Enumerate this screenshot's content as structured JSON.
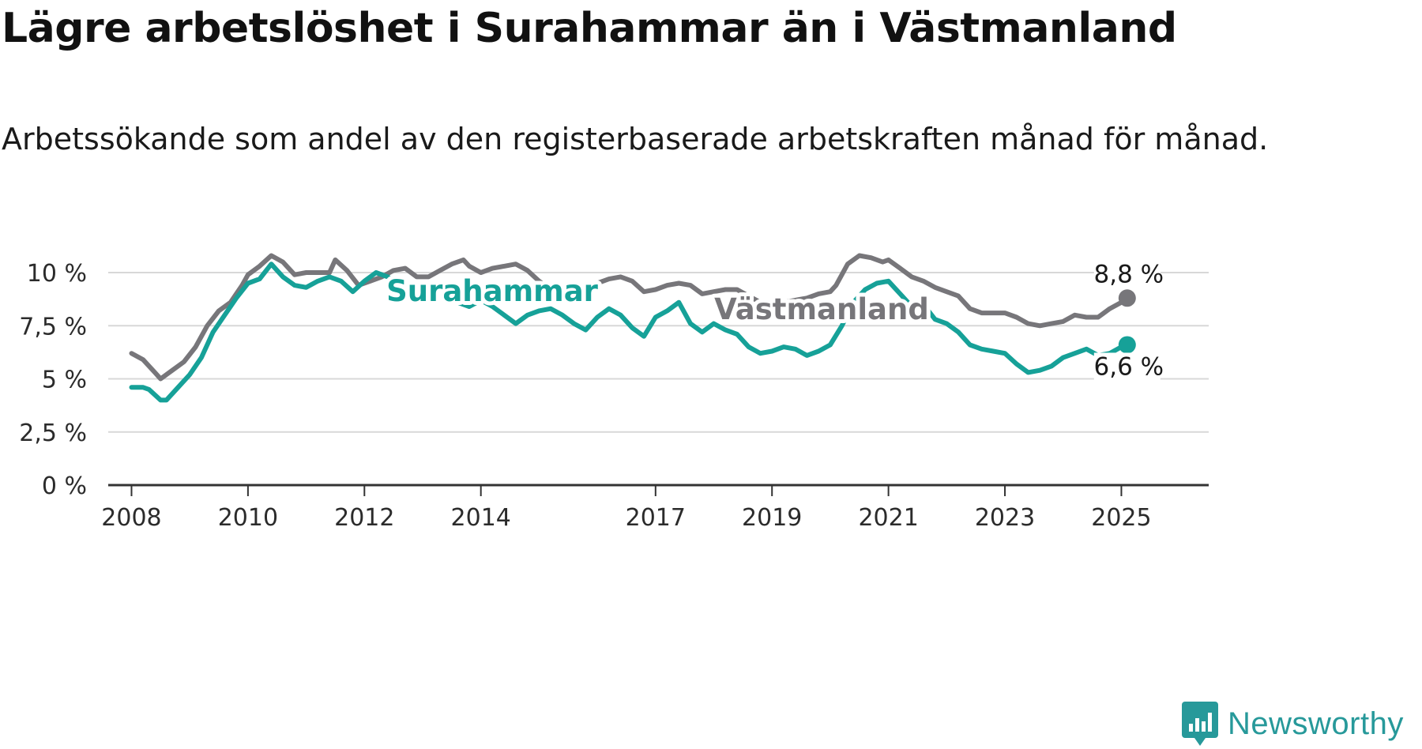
{
  "title": "Lägre arbetslöshet i Surahammar än i Västmanland",
  "subtitle": "Arbetssökande som andel av den registerbaserade arbetskraften månad för månad.",
  "brand": {
    "name": "Newsworthy",
    "icon": "newsworthy-logo-icon",
    "color": "#27999a"
  },
  "chart_data": {
    "type": "line",
    "title": "Lägre arbetslöshet i Surahammar än i Västmanland",
    "subtitle": "Arbetssökande som andel av den registerbaserade arbetskraften månad för månad.",
    "xlabel": "",
    "ylabel": "",
    "xlim": [
      2007.6,
      2026.5
    ],
    "ylim": [
      0,
      10
    ],
    "x_ticks": [
      2008,
      2010,
      2012,
      2014,
      2017,
      2019,
      2021,
      2023,
      2025
    ],
    "x_tick_labels": [
      "2008",
      "2010",
      "2012",
      "2014",
      "2017",
      "2019",
      "2021",
      "2023",
      "2025"
    ],
    "y_ticks": [
      0,
      2.5,
      5,
      7.5,
      10
    ],
    "y_tick_labels": [
      "0 %",
      "2,5 %",
      "5 %",
      "7,5 %",
      "10 %"
    ],
    "grid": true,
    "legend": "inline labels",
    "series": [
      {
        "name": "Västmanland",
        "color": "#77767a",
        "end_label": "8,8 %",
        "label_at": [
          2013.4,
          8.4
        ],
        "points": [
          [
            2008.0,
            6.2
          ],
          [
            2008.2,
            5.9
          ],
          [
            2008.4,
            5.3
          ],
          [
            2008.5,
            5.0
          ],
          [
            2008.7,
            5.4
          ],
          [
            2008.9,
            5.8
          ],
          [
            2009.1,
            6.5
          ],
          [
            2009.3,
            7.5
          ],
          [
            2009.5,
            8.2
          ],
          [
            2009.7,
            8.6
          ],
          [
            2009.9,
            9.4
          ],
          [
            2010.0,
            9.9
          ],
          [
            2010.2,
            10.3
          ],
          [
            2010.4,
            10.8
          ],
          [
            2010.6,
            10.5
          ],
          [
            2010.8,
            9.9
          ],
          [
            2011.0,
            10.0
          ],
          [
            2011.2,
            10.0
          ],
          [
            2011.4,
            10.0
          ],
          [
            2011.5,
            10.6
          ],
          [
            2011.7,
            10.1
          ],
          [
            2011.9,
            9.4
          ],
          [
            2012.1,
            9.6
          ],
          [
            2012.3,
            9.8
          ],
          [
            2012.5,
            10.1
          ],
          [
            2012.7,
            10.2
          ],
          [
            2012.9,
            9.8
          ],
          [
            2013.1,
            9.8
          ],
          [
            2013.3,
            10.1
          ],
          [
            2013.5,
            10.4
          ],
          [
            2013.7,
            10.6
          ],
          [
            2013.8,
            10.3
          ],
          [
            2014.0,
            10.0
          ],
          [
            2014.2,
            10.2
          ],
          [
            2014.4,
            10.3
          ],
          [
            2014.6,
            10.4
          ],
          [
            2014.8,
            10.1
          ],
          [
            2015.0,
            9.6
          ],
          [
            2015.2,
            9.2
          ],
          [
            2015.4,
            9.0
          ],
          [
            2015.6,
            9.0
          ],
          [
            2015.8,
            9.2
          ],
          [
            2016.0,
            9.5
          ],
          [
            2016.2,
            9.7
          ],
          [
            2016.4,
            9.8
          ],
          [
            2016.6,
            9.6
          ],
          [
            2016.8,
            9.1
          ],
          [
            2017.0,
            9.2
          ],
          [
            2017.2,
            9.4
          ],
          [
            2017.4,
            9.5
          ],
          [
            2017.6,
            9.4
          ],
          [
            2017.8,
            9.0
          ],
          [
            2018.0,
            9.1
          ],
          [
            2018.2,
            9.2
          ],
          [
            2018.4,
            9.2
          ],
          [
            2018.6,
            8.9
          ],
          [
            2018.8,
            8.6
          ],
          [
            2019.0,
            8.6
          ],
          [
            2019.2,
            8.6
          ],
          [
            2019.4,
            8.7
          ],
          [
            2019.6,
            8.8
          ],
          [
            2019.8,
            9.0
          ],
          [
            2020.0,
            9.1
          ],
          [
            2020.1,
            9.4
          ],
          [
            2020.3,
            10.4
          ],
          [
            2020.5,
            10.8
          ],
          [
            2020.7,
            10.7
          ],
          [
            2020.9,
            10.5
          ],
          [
            2021.0,
            10.6
          ],
          [
            2021.2,
            10.2
          ],
          [
            2021.4,
            9.8
          ],
          [
            2021.6,
            9.6
          ],
          [
            2021.8,
            9.3
          ],
          [
            2022.0,
            9.1
          ],
          [
            2022.2,
            8.9
          ],
          [
            2022.4,
            8.3
          ],
          [
            2022.6,
            8.1
          ],
          [
            2022.8,
            8.1
          ],
          [
            2023.0,
            8.1
          ],
          [
            2023.2,
            7.9
          ],
          [
            2023.4,
            7.6
          ],
          [
            2023.6,
            7.5
          ],
          [
            2023.8,
            7.6
          ],
          [
            2024.0,
            7.7
          ],
          [
            2024.2,
            8.0
          ],
          [
            2024.4,
            7.9
          ],
          [
            2024.6,
            7.9
          ],
          [
            2024.8,
            8.3
          ],
          [
            2025.0,
            8.6
          ],
          [
            2025.1,
            8.8
          ]
        ]
      },
      {
        "name": "Surahammar",
        "color": "#16a198",
        "end_label": "6,6 %",
        "label_at": [
          2013.0,
          9.0
        ],
        "points": [
          [
            2008.0,
            4.6
          ],
          [
            2008.2,
            4.6
          ],
          [
            2008.3,
            4.5
          ],
          [
            2008.5,
            4.0
          ],
          [
            2008.6,
            4.0
          ],
          [
            2008.8,
            4.6
          ],
          [
            2009.0,
            5.2
          ],
          [
            2009.2,
            6.0
          ],
          [
            2009.4,
            7.2
          ],
          [
            2009.6,
            8.0
          ],
          [
            2009.8,
            8.8
          ],
          [
            2010.0,
            9.5
          ],
          [
            2010.2,
            9.7
          ],
          [
            2010.4,
            10.4
          ],
          [
            2010.6,
            9.8
          ],
          [
            2010.8,
            9.4
          ],
          [
            2011.0,
            9.3
          ],
          [
            2011.2,
            9.6
          ],
          [
            2011.4,
            9.8
          ],
          [
            2011.6,
            9.6
          ],
          [
            2011.8,
            9.1
          ],
          [
            2012.0,
            9.6
          ],
          [
            2012.2,
            10.0
          ],
          [
            2012.4,
            9.8
          ],
          [
            2012.6,
            9.4
          ],
          [
            2012.8,
            9.0
          ],
          [
            2013.0,
            9.1
          ],
          [
            2013.2,
            9.5
          ],
          [
            2013.4,
            9.2
          ],
          [
            2013.6,
            8.6
          ],
          [
            2013.8,
            8.4
          ],
          [
            2014.0,
            8.7
          ],
          [
            2014.2,
            8.4
          ],
          [
            2014.4,
            8.0
          ],
          [
            2014.6,
            7.6
          ],
          [
            2014.8,
            8.0
          ],
          [
            2015.0,
            8.2
          ],
          [
            2015.2,
            8.3
          ],
          [
            2015.4,
            8.0
          ],
          [
            2015.6,
            7.6
          ],
          [
            2015.8,
            7.3
          ],
          [
            2016.0,
            7.9
          ],
          [
            2016.2,
            8.3
          ],
          [
            2016.4,
            8.0
          ],
          [
            2016.6,
            7.4
          ],
          [
            2016.8,
            7.0
          ],
          [
            2017.0,
            7.9
          ],
          [
            2017.2,
            8.2
          ],
          [
            2017.4,
            8.6
          ],
          [
            2017.6,
            7.6
          ],
          [
            2017.8,
            7.2
          ],
          [
            2018.0,
            7.6
          ],
          [
            2018.2,
            7.3
          ],
          [
            2018.4,
            7.1
          ],
          [
            2018.6,
            6.5
          ],
          [
            2018.8,
            6.2
          ],
          [
            2019.0,
            6.3
          ],
          [
            2019.2,
            6.5
          ],
          [
            2019.4,
            6.4
          ],
          [
            2019.6,
            6.1
          ],
          [
            2019.8,
            6.3
          ],
          [
            2020.0,
            6.6
          ],
          [
            2020.2,
            7.5
          ],
          [
            2020.4,
            8.6
          ],
          [
            2020.6,
            9.2
          ],
          [
            2020.8,
            9.5
          ],
          [
            2021.0,
            9.6
          ],
          [
            2021.2,
            9.0
          ],
          [
            2021.4,
            8.4
          ],
          [
            2021.6,
            8.5
          ],
          [
            2021.8,
            7.8
          ],
          [
            2022.0,
            7.6
          ],
          [
            2022.2,
            7.2
          ],
          [
            2022.4,
            6.6
          ],
          [
            2022.6,
            6.4
          ],
          [
            2022.8,
            6.3
          ],
          [
            2023.0,
            6.2
          ],
          [
            2023.2,
            5.7
          ],
          [
            2023.4,
            5.3
          ],
          [
            2023.6,
            5.4
          ],
          [
            2023.8,
            5.6
          ],
          [
            2024.0,
            6.0
          ],
          [
            2024.2,
            6.2
          ],
          [
            2024.4,
            6.4
          ],
          [
            2024.6,
            6.1
          ],
          [
            2024.8,
            6.2
          ],
          [
            2025.0,
            6.5
          ],
          [
            2025.1,
            6.6
          ]
        ]
      }
    ]
  }
}
